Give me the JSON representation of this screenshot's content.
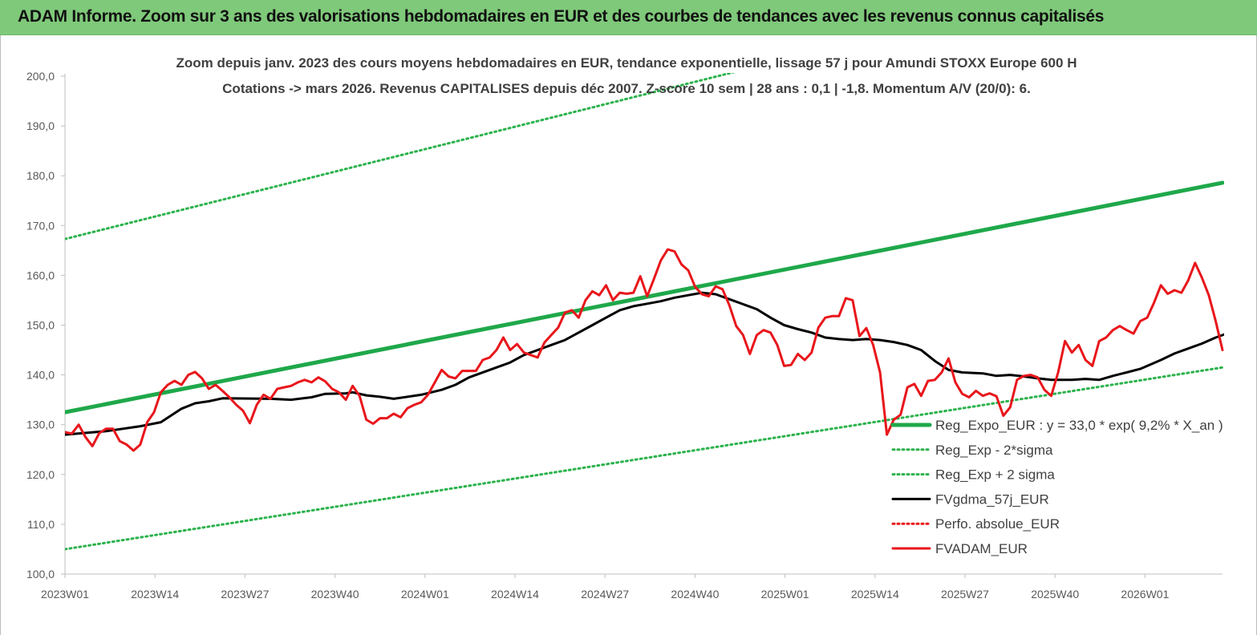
{
  "banner": {
    "title": "ADAM Informe. Zoom sur 3 ans des valorisations hebdomadaires en EUR et des courbes de tendances avec les revenus connus capitalisés"
  },
  "colors": {
    "banner_bg": "#7fc97a",
    "trend_green": "#1fa84a",
    "band_green": "#2bb24c",
    "smooth_black": "#000000",
    "price_red": "#e8161b",
    "dotted_red": "#e8161b"
  },
  "chart_data": {
    "type": "line",
    "title": "Zoom depuis janv. 2023 des cours moyens hebdomadaires en EUR, tendance exponentielle, lissage 57 j pour Amundi STOXX Europe 600 H",
    "subtitle": "Cotations -> mars 2026. Revenus CAPITALISES depuis déc 2007. Z-score 10 sem | 28 ans : 0,1 | -1,8. Momentum A/V (20/0): 6.",
    "xlabel": "",
    "ylabel": "",
    "ylim": [
      100,
      200
    ],
    "yticks": [
      "100,0",
      "110,0",
      "120,0",
      "130,0",
      "140,0",
      "150,0",
      "160,0",
      "170,0",
      "180,0",
      "190,0",
      "200,0"
    ],
    "xticks": [
      "2023W01",
      "2023W14",
      "2023W27",
      "2023W40",
      "2024W01",
      "2024W14",
      "2024W27",
      "2024W40",
      "2025W01",
      "2025W14",
      "2025W27",
      "2025W40",
      "2026W01"
    ],
    "x_week_range": [
      0,
      169
    ],
    "grid": false,
    "legend_placement": "right",
    "series": [
      {
        "name": "Reg_Expo_EUR : y = 33,0 * exp( 9,2% *  X_an )",
        "style": "thick-solid",
        "color": "#1fa84a",
        "points": [
          [
            0,
            132.5
          ],
          [
            169,
            178.6
          ]
        ]
      },
      {
        "name": "Reg_Exp - 2*sigma",
        "style": "dotted",
        "color": "#2bb24c",
        "points": [
          [
            0,
            105.0
          ],
          [
            169,
            141.5
          ]
        ]
      },
      {
        "name": "Reg_Exp + 2 sigma",
        "style": "dotted",
        "color": "#2bb24c",
        "points": [
          [
            0,
            167.3
          ],
          [
            169,
            225.3
          ]
        ]
      },
      {
        "name": "FVgdma_57j_EUR",
        "style": "solid",
        "color": "#000000",
        "points": [
          [
            0,
            128.0
          ],
          [
            6,
            128.7
          ],
          [
            11,
            129.7
          ],
          [
            14,
            130.5
          ],
          [
            17,
            133.2
          ],
          [
            19,
            134.3
          ],
          [
            21,
            134.7
          ],
          [
            23,
            135.3
          ],
          [
            30,
            135.2
          ],
          [
            33,
            135.0
          ],
          [
            36,
            135.5
          ],
          [
            38,
            136.2
          ],
          [
            41,
            136.3
          ],
          [
            42,
            136.5
          ],
          [
            44,
            135.9
          ],
          [
            46,
            135.6
          ],
          [
            48,
            135.2
          ],
          [
            52,
            136.0
          ],
          [
            55,
            137.0
          ],
          [
            57,
            138.0
          ],
          [
            59,
            139.5
          ],
          [
            63,
            141.5
          ],
          [
            65,
            142.5
          ],
          [
            67,
            144.0
          ],
          [
            69,
            145.0
          ],
          [
            71,
            146.0
          ],
          [
            73,
            147.0
          ],
          [
            75,
            148.5
          ],
          [
            77,
            150.0
          ],
          [
            79,
            151.5
          ],
          [
            81,
            153.0
          ],
          [
            83,
            153.8
          ],
          [
            85,
            154.3
          ],
          [
            87,
            154.8
          ],
          [
            89,
            155.5
          ],
          [
            91,
            156.0
          ],
          [
            93,
            156.5
          ],
          [
            95,
            156.2
          ],
          [
            97,
            155.2
          ],
          [
            99,
            154.2
          ],
          [
            101,
            153.2
          ],
          [
            103,
            151.5
          ],
          [
            105,
            150.0
          ],
          [
            107,
            149.2
          ],
          [
            109,
            148.5
          ],
          [
            111,
            147.5
          ],
          [
            113,
            147.2
          ],
          [
            115,
            147.0
          ],
          [
            117,
            147.2
          ],
          [
            119,
            147.0
          ],
          [
            121,
            146.6
          ],
          [
            123,
            146.0
          ],
          [
            125,
            145.0
          ],
          [
            127,
            142.8
          ],
          [
            129,
            141.0
          ],
          [
            131,
            140.5
          ],
          [
            134,
            140.3
          ],
          [
            136,
            139.8
          ],
          [
            138,
            140.0
          ],
          [
            140,
            139.7
          ],
          [
            142,
            139.3
          ],
          [
            144,
            139.0
          ],
          [
            147,
            139.0
          ],
          [
            149,
            139.2
          ],
          [
            151,
            139.0
          ],
          [
            153,
            139.8
          ],
          [
            155,
            140.5
          ],
          [
            157,
            141.2
          ],
          [
            160,
            143.0
          ],
          [
            162,
            144.3
          ],
          [
            164,
            145.3
          ],
          [
            166,
            146.3
          ],
          [
            168,
            147.5
          ],
          [
            170,
            148.5
          ],
          [
            172,
            149.2
          ],
          [
            174,
            149.8
          ],
          [
            176,
            151.0
          ],
          [
            178,
            151.2
          ],
          [
            180,
            151.3
          ],
          [
            182,
            151.5
          ],
          [
            184,
            151.2
          ],
          [
            186,
            150.5
          ],
          [
            188,
            149.7
          ],
          [
            190,
            148.8
          ]
        ]
      },
      {
        "name": "Perfo. absolue_EUR",
        "style": "dotted",
        "color": "#e8161b",
        "points": []
      },
      {
        "name": "FVADAM_EUR",
        "style": "solid",
        "color": "#e8161b",
        "points": [
          [
            0,
            128.5
          ],
          [
            1,
            128.2
          ],
          [
            2,
            130.0
          ],
          [
            3,
            127.5
          ],
          [
            4,
            125.7
          ],
          [
            5,
            128.3
          ],
          [
            6,
            129.2
          ],
          [
            7,
            129.2
          ],
          [
            8,
            126.7
          ],
          [
            9,
            126.0
          ],
          [
            10,
            124.8
          ],
          [
            11,
            126.0
          ],
          [
            12,
            130.5
          ],
          [
            13,
            132.5
          ],
          [
            14,
            136.5
          ],
          [
            15,
            138.0
          ],
          [
            16,
            138.8
          ],
          [
            17,
            138.0
          ],
          [
            18,
            140.0
          ],
          [
            19,
            140.6
          ],
          [
            20,
            139.3
          ],
          [
            21,
            137.2
          ],
          [
            22,
            138.0
          ],
          [
            23,
            136.8
          ],
          [
            24,
            135.5
          ],
          [
            25,
            134.0
          ],
          [
            26,
            132.8
          ],
          [
            27,
            130.3
          ],
          [
            28,
            134.0
          ],
          [
            29,
            136.0
          ],
          [
            30,
            135.2
          ],
          [
            31,
            137.2
          ],
          [
            32,
            137.5
          ],
          [
            33,
            137.8
          ],
          [
            34,
            138.5
          ],
          [
            35,
            139.0
          ],
          [
            36,
            138.5
          ],
          [
            37,
            139.5
          ],
          [
            38,
            138.7
          ],
          [
            39,
            137.2
          ],
          [
            40,
            136.5
          ],
          [
            41,
            135.0
          ],
          [
            42,
            137.8
          ],
          [
            43,
            135.8
          ],
          [
            44,
            131.0
          ],
          [
            45,
            130.2
          ],
          [
            46,
            131.3
          ],
          [
            47,
            131.3
          ],
          [
            48,
            132.2
          ],
          [
            49,
            131.5
          ],
          [
            50,
            133.3
          ],
          [
            51,
            134.0
          ],
          [
            52,
            134.5
          ],
          [
            53,
            136.0
          ],
          [
            54,
            138.5
          ],
          [
            55,
            141.0
          ],
          [
            56,
            139.7
          ],
          [
            57,
            139.3
          ],
          [
            58,
            140.8
          ],
          [
            59,
            140.8
          ],
          [
            60,
            140.8
          ],
          [
            61,
            143.0
          ],
          [
            62,
            143.5
          ],
          [
            63,
            145.0
          ],
          [
            64,
            147.5
          ],
          [
            65,
            145.0
          ],
          [
            66,
            146.2
          ],
          [
            67,
            144.5
          ],
          [
            68,
            144.0
          ],
          [
            69,
            143.5
          ],
          [
            70,
            146.5
          ],
          [
            71,
            148.0
          ],
          [
            72,
            149.5
          ],
          [
            73,
            152.5
          ],
          [
            74,
            153.0
          ],
          [
            75,
            151.5
          ],
          [
            76,
            155.0
          ],
          [
            77,
            156.8
          ],
          [
            78,
            156.0
          ],
          [
            79,
            158.0
          ],
          [
            80,
            155.0
          ],
          [
            81,
            156.5
          ],
          [
            82,
            156.3
          ],
          [
            83,
            156.5
          ],
          [
            84,
            159.8
          ],
          [
            85,
            155.8
          ],
          [
            86,
            159.3
          ],
          [
            87,
            163.0
          ],
          [
            88,
            165.2
          ],
          [
            89,
            164.8
          ],
          [
            90,
            162.2
          ],
          [
            91,
            161.0
          ],
          [
            92,
            157.7
          ],
          [
            93,
            156.2
          ],
          [
            94,
            155.8
          ],
          [
            95,
            157.8
          ],
          [
            96,
            157.2
          ],
          [
            97,
            154.0
          ],
          [
            98,
            149.8
          ],
          [
            99,
            148.0
          ],
          [
            100,
            144.2
          ],
          [
            101,
            148.0
          ],
          [
            102,
            149.0
          ],
          [
            103,
            148.5
          ],
          [
            104,
            146.0
          ],
          [
            105,
            141.8
          ],
          [
            106,
            142.0
          ],
          [
            107,
            144.2
          ],
          [
            108,
            143.0
          ],
          [
            109,
            144.5
          ],
          [
            110,
            149.5
          ],
          [
            111,
            151.5
          ],
          [
            112,
            151.8
          ],
          [
            113,
            151.8
          ],
          [
            114,
            155.4
          ],
          [
            115,
            155.0
          ],
          [
            116,
            147.8
          ],
          [
            117,
            149.4
          ],
          [
            118,
            146.0
          ],
          [
            119,
            140.5
          ],
          [
            120,
            128.0
          ],
          [
            121,
            131.0
          ],
          [
            122,
            132.0
          ],
          [
            123,
            137.5
          ],
          [
            124,
            138.2
          ],
          [
            125,
            135.8
          ],
          [
            126,
            138.8
          ],
          [
            127,
            139.0
          ],
          [
            128,
            140.5
          ],
          [
            129,
            143.3
          ],
          [
            130,
            138.5
          ],
          [
            131,
            136.2
          ],
          [
            132,
            135.5
          ],
          [
            133,
            136.8
          ],
          [
            134,
            135.8
          ],
          [
            135,
            136.3
          ],
          [
            136,
            135.7
          ],
          [
            137,
            131.8
          ],
          [
            138,
            133.5
          ],
          [
            139,
            139.0
          ],
          [
            140,
            139.8
          ],
          [
            141,
            140.0
          ],
          [
            142,
            139.5
          ],
          [
            143,
            137.0
          ],
          [
            144,
            135.8
          ],
          [
            145,
            140.5
          ],
          [
            146,
            146.8
          ],
          [
            147,
            144.5
          ],
          [
            148,
            146.0
          ],
          [
            149,
            143.0
          ],
          [
            150,
            141.8
          ],
          [
            151,
            146.8
          ],
          [
            152,
            147.5
          ],
          [
            153,
            149.0
          ],
          [
            154,
            149.8
          ],
          [
            155,
            149.0
          ],
          [
            156,
            148.3
          ],
          [
            157,
            150.8
          ],
          [
            158,
            151.5
          ],
          [
            159,
            154.5
          ],
          [
            160,
            158.0
          ],
          [
            161,
            156.3
          ],
          [
            162,
            157.0
          ],
          [
            163,
            156.5
          ],
          [
            164,
            159.0
          ],
          [
            165,
            162.5
          ],
          [
            166,
            159.5
          ],
          [
            167,
            156.0
          ],
          [
            168,
            150.8
          ],
          [
            169,
            145.0
          ]
        ]
      }
    ]
  }
}
